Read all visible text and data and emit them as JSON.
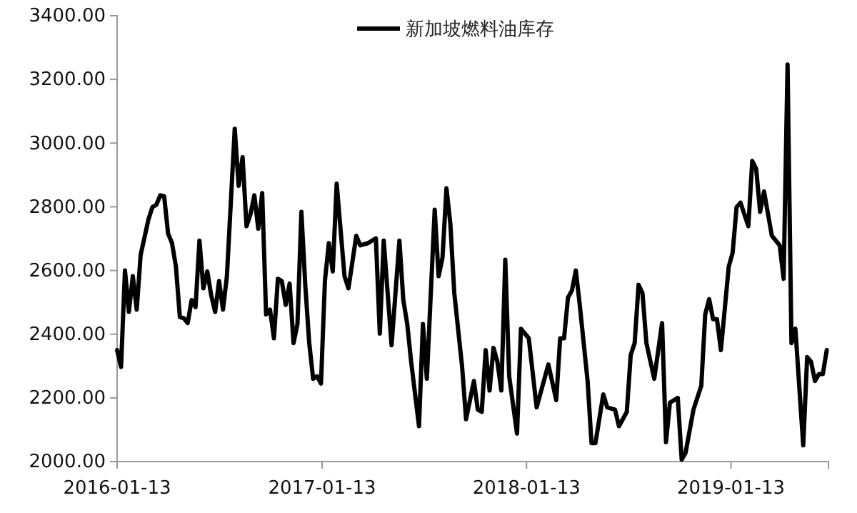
{
  "chart_data": {
    "type": "line",
    "x": [
      "2016-01-13",
      "2016-01-20",
      "2016-01-27",
      "2016-02-03",
      "2016-02-10",
      "2016-02-17",
      "2016-02-24",
      "2016-03-09",
      "2016-03-16",
      "2016-03-23",
      "2016-03-30",
      "2016-04-06",
      "2016-04-13",
      "2016-04-20",
      "2016-04-27",
      "2016-05-04",
      "2016-05-11",
      "2016-05-18",
      "2016-05-25",
      "2016-06-01",
      "2016-06-08",
      "2016-06-15",
      "2016-06-22",
      "2016-06-29",
      "2016-07-06",
      "2016-07-13",
      "2016-07-20",
      "2016-07-27",
      "2016-08-10",
      "2016-08-17",
      "2016-08-24",
      "2016-08-31",
      "2016-09-07",
      "2016-09-14",
      "2016-09-21",
      "2016-09-28",
      "2016-10-05",
      "2016-10-12",
      "2016-10-19",
      "2016-10-26",
      "2016-11-02",
      "2016-11-09",
      "2016-11-16",
      "2016-11-23",
      "2016-11-30",
      "2016-12-07",
      "2016-12-14",
      "2016-12-21",
      "2016-12-28",
      "2017-01-04",
      "2017-01-11",
      "2017-01-18",
      "2017-01-25",
      "2017-02-01",
      "2017-02-08",
      "2017-02-22",
      "2017-03-01",
      "2017-03-15",
      "2017-03-22",
      "2017-04-05",
      "2017-04-19",
      "2017-04-26",
      "2017-05-03",
      "2017-05-17",
      "2017-05-31",
      "2017-06-07",
      "2017-06-14",
      "2017-06-21",
      "2017-07-05",
      "2017-07-12",
      "2017-07-19",
      "2017-08-02",
      "2017-08-09",
      "2017-08-16",
      "2017-08-23",
      "2017-08-30",
      "2017-09-06",
      "2017-09-20",
      "2017-09-27",
      "2017-10-11",
      "2017-10-18",
      "2017-10-25",
      "2017-11-01",
      "2017-11-08",
      "2017-11-15",
      "2017-11-22",
      "2017-11-29",
      "2017-12-06",
      "2017-12-13",
      "2017-12-27",
      "2018-01-03",
      "2018-01-17",
      "2018-01-31",
      "2018-02-21",
      "2018-03-07",
      "2018-03-14",
      "2018-03-21",
      "2018-03-28",
      "2018-04-04",
      "2018-04-11",
      "2018-04-18",
      "2018-05-02",
      "2018-05-09",
      "2018-05-16",
      "2018-05-30",
      "2018-06-06",
      "2018-06-20",
      "2018-06-27",
      "2018-07-11",
      "2018-07-18",
      "2018-07-25",
      "2018-08-01",
      "2018-08-08",
      "2018-08-15",
      "2018-08-29",
      "2018-09-12",
      "2018-09-19",
      "2018-09-26",
      "2018-10-10",
      "2018-10-17",
      "2018-10-24",
      "2018-11-07",
      "2018-11-21",
      "2018-11-28",
      "2018-12-05",
      "2018-12-12",
      "2018-12-19",
      "2018-12-26",
      "2019-01-09",
      "2019-01-16",
      "2019-01-23",
      "2019-01-30",
      "2019-02-13",
      "2019-02-20",
      "2019-02-27",
      "2019-03-06",
      "2019-03-13",
      "2019-03-27",
      "2019-04-10",
      "2019-04-17",
      "2019-04-24",
      "2019-05-01",
      "2019-05-08",
      "2019-05-22",
      "2019-05-29",
      "2019-06-05",
      "2019-06-12",
      "2019-06-19",
      "2019-06-26",
      "2019-07-03"
    ],
    "series": [
      {
        "name": "新加坡燃料油库存",
        "color": "#000000",
        "values": [
          2350,
          2297,
          2600,
          2470,
          2582,
          2477,
          2649,
          2761,
          2799,
          2806,
          2836,
          2833,
          2716,
          2686,
          2612,
          2454,
          2450,
          2435,
          2507,
          2485,
          2694,
          2544,
          2597,
          2522,
          2470,
          2567,
          2477,
          2582,
          3045,
          2866,
          2956,
          2739,
          2776,
          2836,
          2731,
          2843,
          2462,
          2477,
          2387,
          2574,
          2567,
          2492,
          2559,
          2372,
          2432,
          2784,
          2552,
          2372,
          2260,
          2268,
          2245,
          2567,
          2686,
          2597,
          2873,
          2582,
          2544,
          2709,
          2679,
          2686,
          2701,
          2402,
          2694,
          2365,
          2694,
          2507,
          2432,
          2313,
          2111,
          2432,
          2260,
          2791,
          2582,
          2641,
          2858,
          2746,
          2529,
          2297,
          2133,
          2253,
          2163,
          2156,
          2350,
          2223,
          2357,
          2313,
          2223,
          2634,
          2268,
          2088,
          2417,
          2387,
          2170,
          2305,
          2193,
          2387,
          2387,
          2515,
          2537,
          2600,
          2492,
          2253,
          2058,
          2058,
          2211,
          2170,
          2163,
          2111,
          2156,
          2335,
          2372,
          2555,
          2529,
          2372,
          2260,
          2435,
          2061,
          2185,
          2200,
          2006,
          2028,
          2163,
          2238,
          2462,
          2510,
          2447,
          2447,
          2350,
          2612,
          2656,
          2799,
          2813,
          2739,
          2944,
          2919,
          2784,
          2848,
          2709,
          2679,
          2574,
          3247,
          2372,
          2417,
          2051,
          2328,
          2313,
          2253,
          2275,
          2275,
          2350
        ]
      }
    ],
    "xlim": [
      "2016-01-13",
      "2019-07-06"
    ],
    "xticks": [
      "2016-01-13",
      "2017-01-13",
      "2018-01-13",
      "2019-01-13"
    ],
    "ylim": [
      2000,
      3400
    ],
    "yticks": [
      {
        "value": 2000,
        "label": "2000.00"
      },
      {
        "value": 2200,
        "label": "2200.00"
      },
      {
        "value": 2400,
        "label": "2400.00"
      },
      {
        "value": 2600,
        "label": "2600.00"
      },
      {
        "value": 2800,
        "label": "2800.00"
      },
      {
        "value": 3000,
        "label": "3000.00"
      },
      {
        "value": 3200,
        "label": "3200.00"
      },
      {
        "value": 3400,
        "label": "3400.00"
      }
    ],
    "grid": false,
    "legend": "top",
    "marker": "none",
    "line_style": "solid"
  }
}
